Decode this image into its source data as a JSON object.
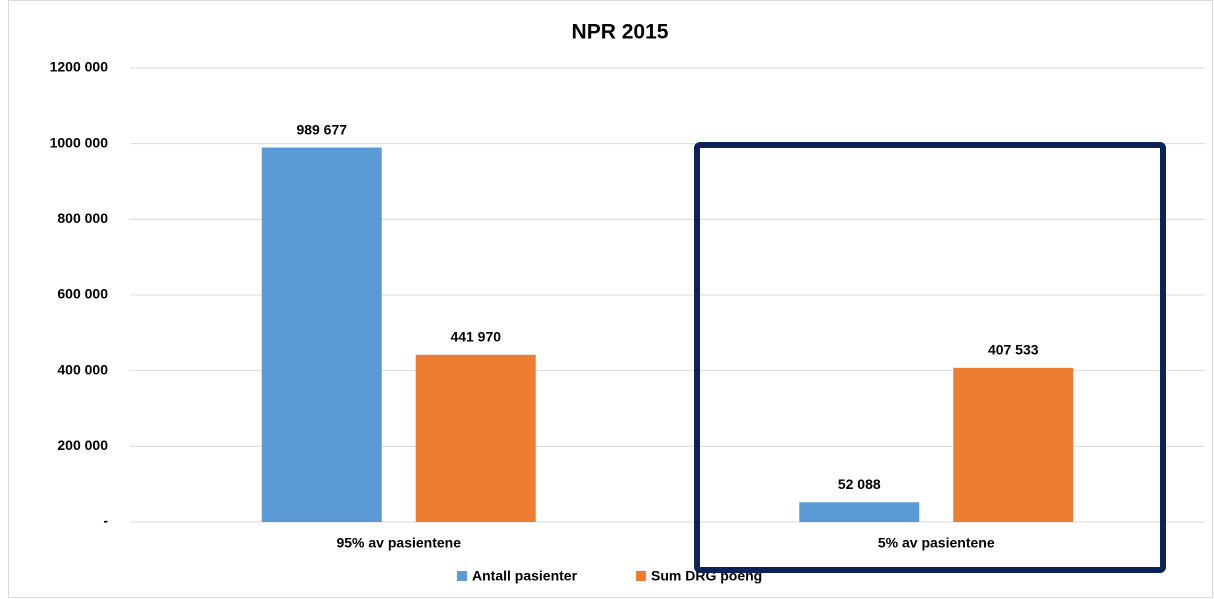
{
  "chart_data": {
    "type": "bar",
    "title": "NPR 2015",
    "categories": [
      "95% av pasientene",
      "5% av pasientene"
    ],
    "series": [
      {
        "name": "Antall pasienter",
        "color": "#5b9bd5",
        "values": [
          989677,
          52088
        ],
        "value_labels": [
          "989 677",
          "52 088"
        ]
      },
      {
        "name": "Sum DRG poeng",
        "color": "#ed7d31",
        "values": [
          441970,
          407533
        ],
        "value_labels": [
          "441 970",
          "407 533"
        ]
      }
    ],
    "ylim": [
      0,
      1200000
    ],
    "yticks": [
      {
        "value": 0,
        "label": "-"
      },
      {
        "value": 200000,
        "label": "200 000"
      },
      {
        "value": 400000,
        "label": "400 000"
      },
      {
        "value": 600000,
        "label": "600 000"
      },
      {
        "value": 800000,
        "label": "800 000"
      },
      {
        "value": 1000000,
        "label": "1000 000"
      },
      {
        "value": 1200000,
        "label": "1200 000"
      }
    ],
    "grid": true,
    "legend": "bottom"
  }
}
